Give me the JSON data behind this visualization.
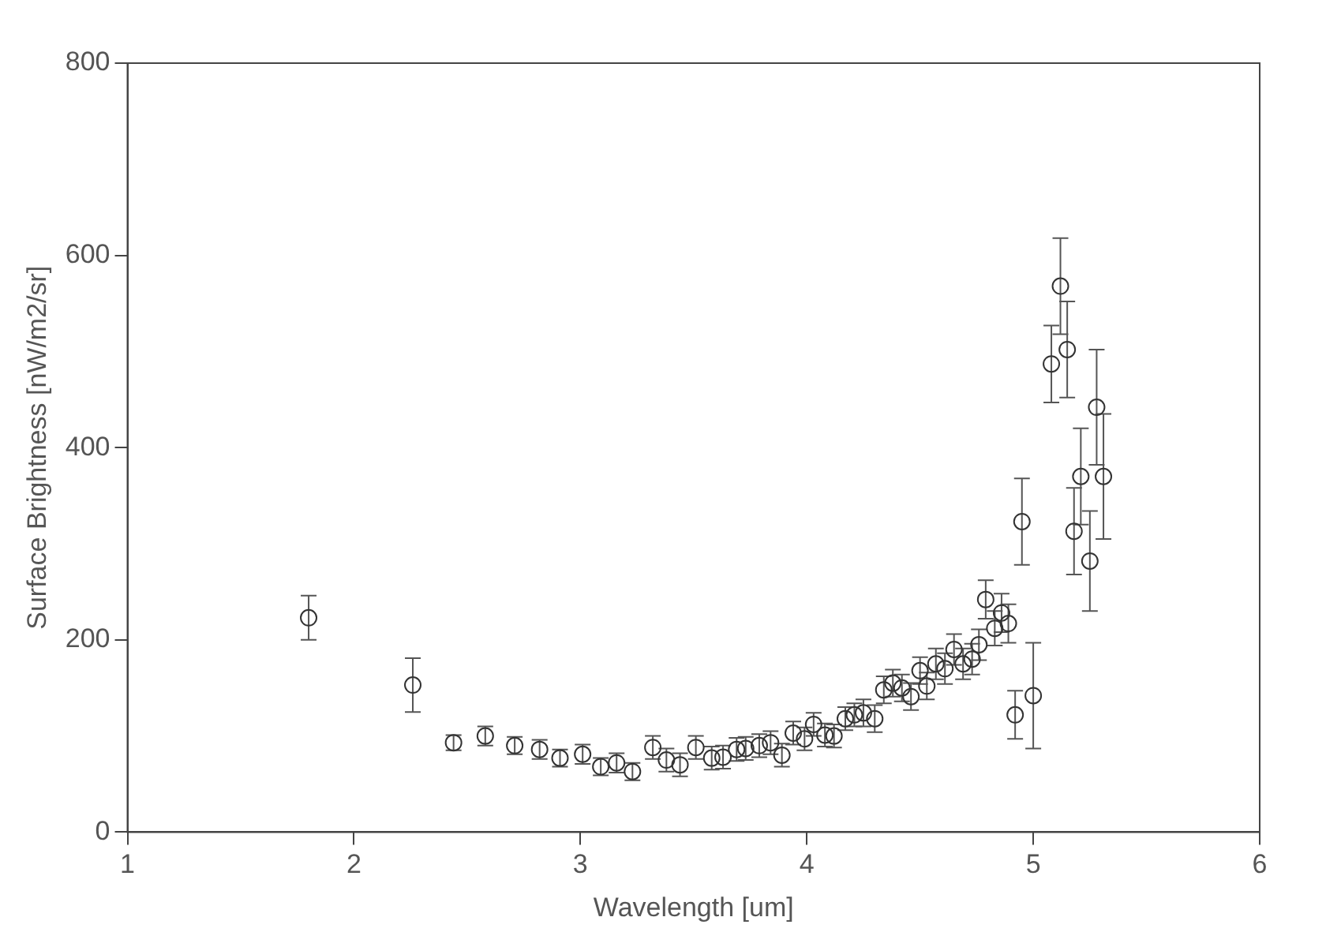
{
  "chart_data": {
    "type": "scatter",
    "xlabel": "Wavelength [um]",
    "ylabel": "Surface Brightness [nW/m2/sr]",
    "x": [
      1.8,
      2.26,
      2.44,
      2.58,
      2.71,
      2.82,
      2.91,
      3.01,
      3.09,
      3.16,
      3.23,
      3.32,
      3.38,
      3.44,
      3.51,
      3.58,
      3.63,
      3.69,
      3.73,
      3.79,
      3.84,
      3.89,
      3.94,
      3.99,
      4.03,
      4.08,
      4.12,
      4.17,
      4.21,
      4.25,
      4.3,
      4.34,
      4.38,
      4.42,
      4.46,
      4.5,
      4.53,
      4.57,
      4.61,
      4.65,
      4.69,
      4.73,
      4.76,
      4.79,
      4.83,
      4.86,
      4.89,
      4.92,
      4.95,
      5.0,
      5.08,
      5.12,
      5.15,
      5.18,
      5.21,
      5.25,
      5.28,
      5.31
    ],
    "values": [
      223,
      153,
      93,
      100,
      90,
      86,
      77,
      81,
      68,
      72,
      63,
      88,
      75,
      70,
      88,
      77,
      78,
      86,
      87,
      90,
      93,
      80,
      103,
      97,
      112,
      101,
      100,
      118,
      122,
      124,
      118,
      148,
      155,
      150,
      141,
      168,
      152,
      175,
      170,
      190,
      175,
      180,
      195,
      242,
      212,
      228,
      217,
      122,
      323,
      142,
      487,
      568,
      502,
      313,
      370,
      282,
      442,
      370
    ],
    "errors": [
      23,
      28,
      8,
      10,
      9,
      10,
      9,
      10,
      9,
      10,
      9,
      12,
      12,
      12,
      12,
      12,
      12,
      12,
      12,
      12,
      12,
      12,
      12,
      12,
      12,
      12,
      12,
      12,
      12,
      14,
      14,
      14,
      14,
      14,
      14,
      14,
      14,
      16,
      16,
      16,
      16,
      16,
      16,
      20,
      18,
      20,
      20,
      25,
      45,
      55,
      40,
      50,
      50,
      45,
      50,
      52,
      60,
      65
    ],
    "color": "#333333",
    "marker": "circle",
    "grid": false,
    "legend": false,
    "xlim": [
      1,
      6
    ],
    "xticks": [
      1,
      2,
      3,
      4,
      5,
      6
    ],
    "ylim": [
      0,
      800
    ],
    "yticks": [
      0,
      200,
      400,
      600,
      800
    ]
  }
}
